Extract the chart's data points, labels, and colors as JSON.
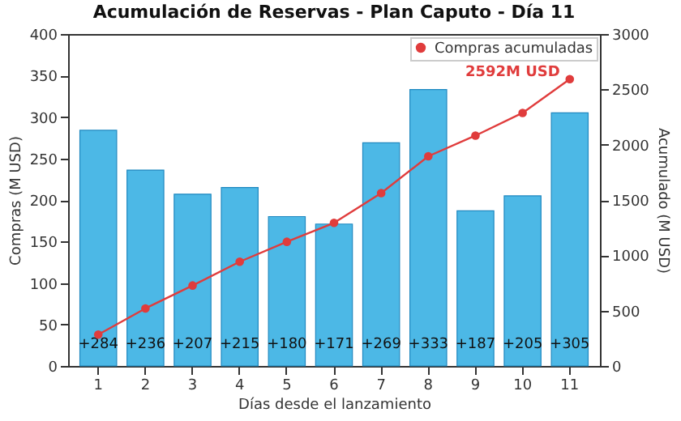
{
  "chart_data": {
    "type": "bar",
    "title": "Acumulación de Reservas - Plan Caputo - Día 11",
    "xlabel": "Días desde el lanzamiento",
    "ylabel": "Compras (M USD)",
    "y2label": "Acumulado (M USD)",
    "categories": [
      "1",
      "2",
      "3",
      "4",
      "5",
      "6",
      "7",
      "8",
      "9",
      "10",
      "11"
    ],
    "series": [
      {
        "color": "#4cb8e6",
        "values": [
          284,
          236,
          207,
          215,
          180,
          171,
          269,
          333,
          187,
          205,
          305
        ],
        "value_labels": [
          "+284",
          "+236",
          "+207",
          "+215",
          "+180",
          "+171",
          "+269",
          "+333",
          "+187",
          "+205",
          "+305"
        ]
      },
      {
        "name": "Compras acumuladas",
        "type": "line",
        "axis": "y2",
        "color": "#e03c3c",
        "values": [
          284,
          520,
          727,
          942,
          1122,
          1293,
          1562,
          1895,
          2082,
          2287,
          2592
        ]
      }
    ],
    "ylim": [
      0,
      400
    ],
    "yticks": [
      0,
      50,
      100,
      150,
      200,
      250,
      300,
      350,
      400
    ],
    "y2lim": [
      0,
      3000
    ],
    "y2ticks": [
      0,
      500,
      1000,
      1500,
      2000,
      2500,
      3000
    ],
    "legend": "top right",
    "marker": "circle",
    "annotations": [
      "2592M USD"
    ]
  }
}
